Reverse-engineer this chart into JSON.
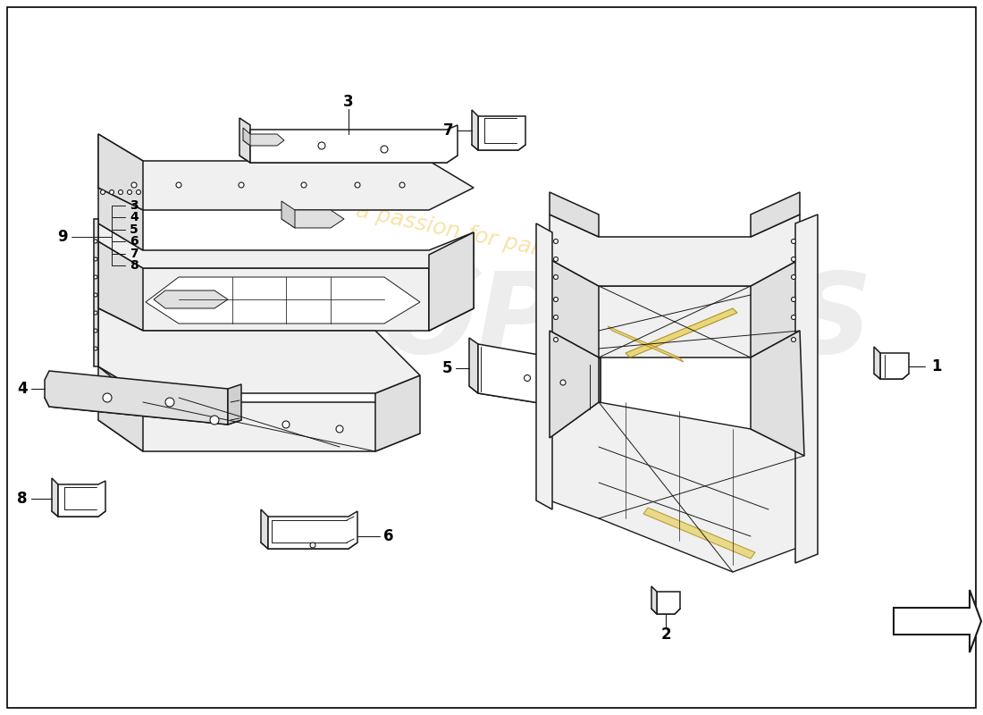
{
  "bg_color": "#ffffff",
  "watermark_color": "#f0c040",
  "watermark_alpha": 0.45,
  "line_color": "#1a1a1a",
  "face_white": "#ffffff",
  "face_light": "#f0f0f0",
  "face_mid": "#e0e0e0",
  "face_dark": "#d0d0d0",
  "face_yellow": "#e8d060",
  "lw_main": 1.1,
  "lw_inner": 0.7,
  "lw_thin": 0.5
}
